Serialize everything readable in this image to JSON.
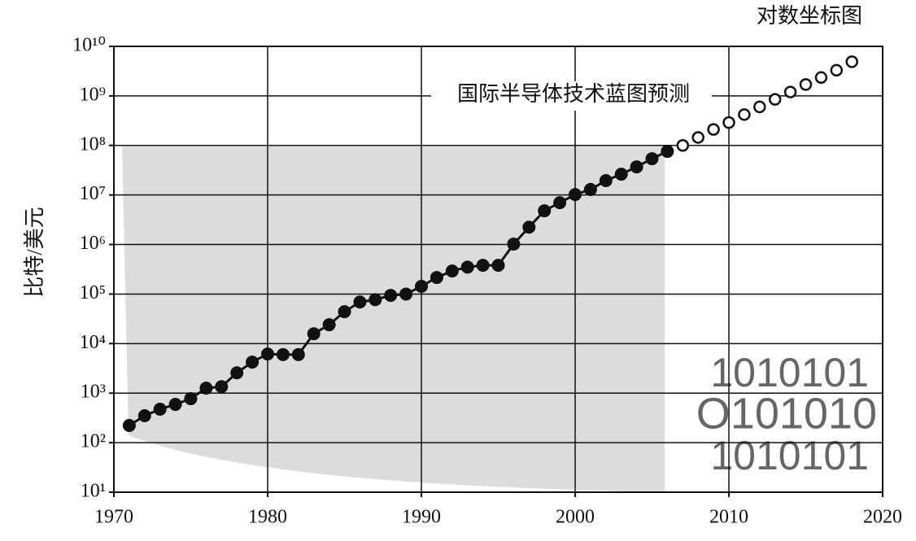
{
  "chart_data": {
    "type": "line",
    "title": "对数坐标图",
    "y_label": "比特/美元",
    "annotation": "国际半导体技术蓝图预测",
    "decorations": [
      "1010101",
      "O101010",
      "1010101"
    ],
    "log_y": true,
    "grid": true,
    "xlim": [
      1970,
      2020
    ],
    "xticks": [
      1970,
      1980,
      1990,
      2000,
      2010,
      2020
    ],
    "ylim": [
      10,
      10000000000
    ],
    "yticks": [
      {
        "value": 10,
        "label": "10¹"
      },
      {
        "value": 100,
        "label": "10²"
      },
      {
        "value": 1000,
        "label": "10³"
      },
      {
        "value": 10000,
        "label": "10⁴"
      },
      {
        "value": 100000,
        "label": "10⁵"
      },
      {
        "value": 1000000,
        "label": "10⁶"
      },
      {
        "value": 10000000,
        "label": "10⁷"
      },
      {
        "value": 100000000,
        "label": "10⁸"
      },
      {
        "value": 1000000000,
        "label": "10⁹"
      },
      {
        "value": 10000000000,
        "label": "10¹⁰"
      }
    ],
    "x": [
      1971,
      1972,
      1973,
      1974,
      1975,
      1976,
      1977,
      1978,
      1979,
      1980,
      1981,
      1982,
      1983,
      1984,
      1985,
      1986,
      1987,
      1988,
      1989,
      1990,
      1991,
      1992,
      1993,
      1994,
      1995,
      1996,
      1997,
      1998,
      1999,
      2000,
      2001,
      2002,
      2003,
      2004,
      2005,
      2006,
      2007,
      2008,
      2009,
      2010,
      2011,
      2012,
      2013,
      2014,
      2015,
      2016,
      2017,
      2018
    ],
    "series": [
      {
        "color": "#111111",
        "marker": "filled",
        "line": true,
        "values": [
          222,
          350,
          473,
          593,
          773,
          1259,
          1350,
          2570,
          4230,
          6170,
          6000,
          6000,
          15800,
          24000,
          44000,
          69000,
          77000,
          94000,
          100000,
          143000,
          216000,
          292000,
          350000,
          380000,
          380000,
          1020000,
          2240000,
          4800000,
          7000000,
          10200000,
          12900000,
          19500000,
          26300000,
          37000000,
          54000000,
          76000000,
          null,
          null,
          null,
          null,
          null,
          null,
          null,
          null,
          null,
          null,
          null,
          null
        ]
      },
      {
        "color": "#111111",
        "marker": "hollow",
        "line": false,
        "values": [
          null,
          null,
          null,
          null,
          null,
          null,
          null,
          null,
          null,
          null,
          null,
          null,
          null,
          null,
          null,
          null,
          null,
          null,
          null,
          null,
          null,
          null,
          null,
          null,
          null,
          null,
          null,
          null,
          null,
          null,
          null,
          null,
          null,
          null,
          null,
          null,
          100000000,
          145000000,
          210000000,
          290000000,
          420000000,
          600000000,
          850000000,
          1200000000,
          1700000000,
          2350000000,
          3300000000,
          4900000000
        ]
      }
    ]
  }
}
